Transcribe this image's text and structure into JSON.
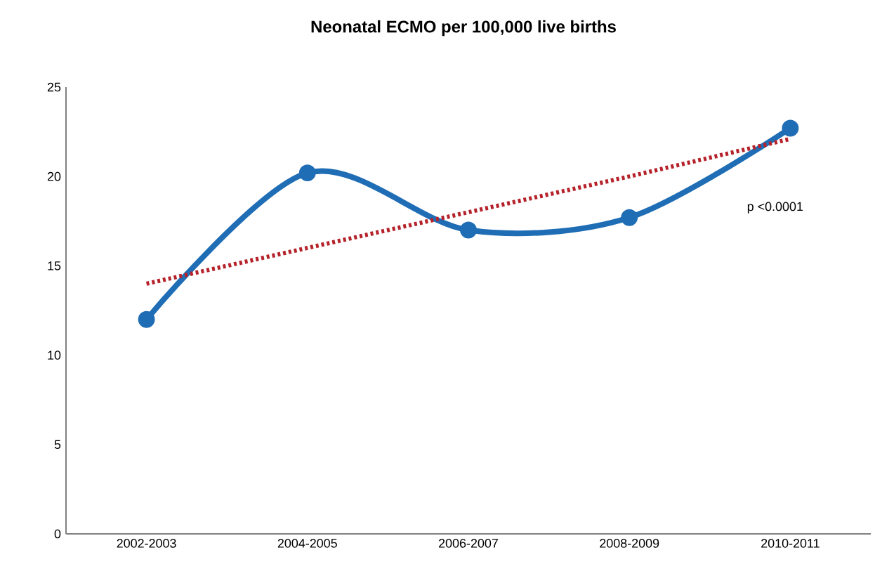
{
  "chart_data": {
    "type": "line",
    "title": "Neonatal ECMO per 100,000 live births",
    "categories": [
      "2002-2003",
      "2004-2005",
      "2006-2007",
      "2008-2009",
      "2010-2011"
    ],
    "series": [
      {
        "color": "#1f6db5",
        "values": [
          12.0,
          20.2,
          17.0,
          17.7,
          22.7
        ],
        "marker": "circle",
        "line_style": "solid"
      },
      {
        "type": "line",
        "color": "#b5222a",
        "values": [
          14.0,
          16.0,
          18.0,
          20.0,
          22.1
        ],
        "marker": "none",
        "line_style": "dotted"
      }
    ],
    "ylim": [
      0,
      25
    ],
    "yticks": [
      0,
      5,
      10,
      15,
      20,
      25
    ],
    "grid": false,
    "annotations": [
      "p <0.0001"
    ]
  }
}
